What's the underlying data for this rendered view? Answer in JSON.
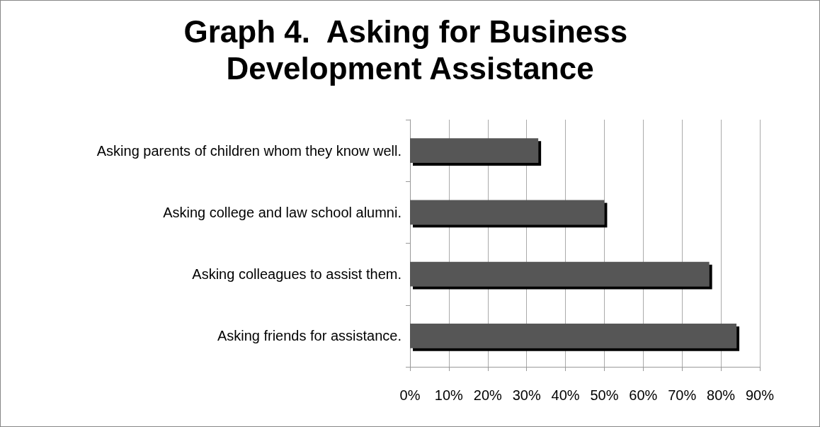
{
  "chart_data": {
    "type": "bar",
    "orientation": "horizontal",
    "title": "Graph 4.  Asking for Business Development Assistance",
    "categories": [
      "Asking parents of children whom they know well.",
      "Asking college and law school alumni.",
      "Asking colleagues to assist them.",
      "Asking friends for assistance."
    ],
    "values": [
      33,
      50,
      77,
      84
    ],
    "color": "#575757",
    "xlim": [
      0,
      90
    ],
    "xticks": [
      {
        "value": 0,
        "label": "0%"
      },
      {
        "value": 10,
        "label": "10%"
      },
      {
        "value": 20,
        "label": "20%"
      },
      {
        "value": 30,
        "label": "30%"
      },
      {
        "value": 40,
        "label": "40%"
      },
      {
        "value": 50,
        "label": "50%"
      },
      {
        "value": 60,
        "label": "60%"
      },
      {
        "value": 70,
        "label": "70%"
      },
      {
        "value": 80,
        "label": "80%"
      },
      {
        "value": 90,
        "label": "90%"
      }
    ],
    "grid": "x"
  }
}
